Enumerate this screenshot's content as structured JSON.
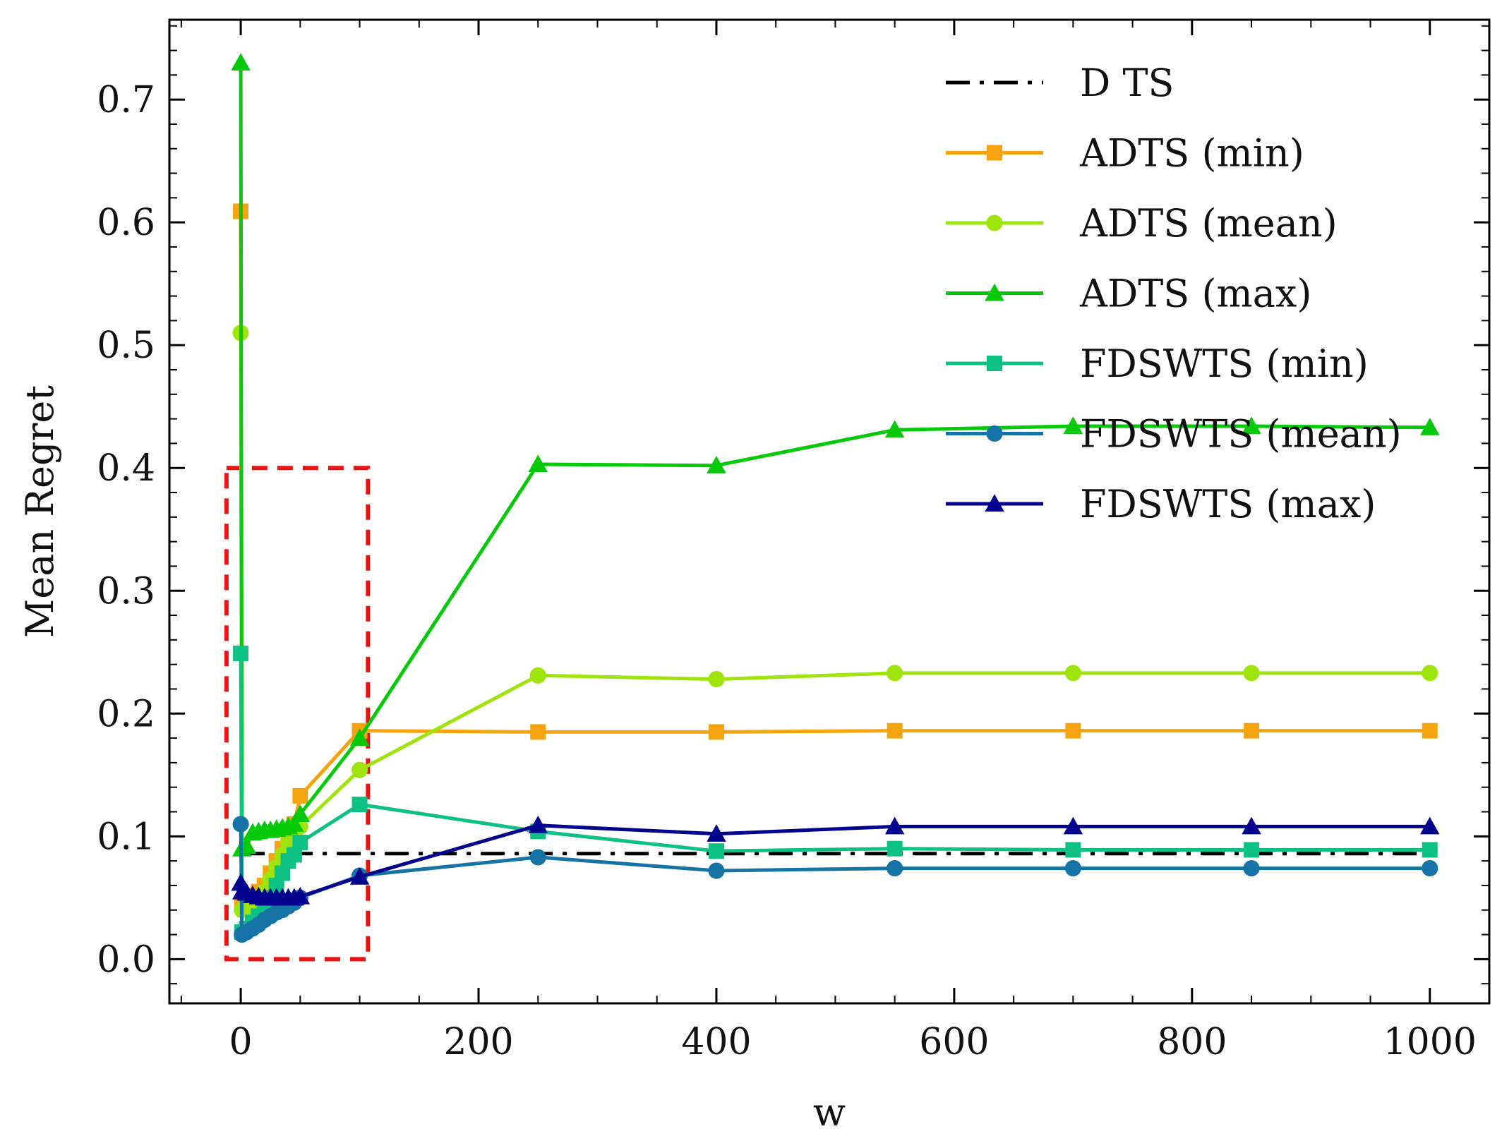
{
  "chart_data": {
    "type": "line",
    "title": "",
    "xlabel": "w",
    "ylabel": "Mean Regret",
    "xlim": [
      -60,
      1050
    ],
    "ylim": [
      -0.036,
      0.765
    ],
    "xticks": [
      0,
      200,
      400,
      600,
      800,
      1000
    ],
    "xtick_labels": [
      "0",
      "200",
      "400",
      "600",
      "800",
      "1000"
    ],
    "yticks": [
      0.0,
      0.1,
      0.2,
      0.3,
      0.4,
      0.5,
      0.6,
      0.7
    ],
    "ytick_labels": [
      "0.0",
      "0.1",
      "0.2",
      "0.3",
      "0.4",
      "0.5",
      "0.6",
      "0.7"
    ],
    "grid": false,
    "legend_position": "top-right",
    "series": [
      {
        "name": "D TS",
        "color": "#000000",
        "dash": "dashdot",
        "marker": "none",
        "x": [
          0,
          1000
        ],
        "y": [
          0.086,
          0.086
        ]
      },
      {
        "name": "ADTS (min)",
        "color": "#f5a30e",
        "dash": "solid",
        "marker": "square",
        "x": [
          0,
          1,
          5,
          10,
          15,
          20,
          25,
          30,
          35,
          40,
          45,
          50,
          100,
          250,
          400,
          550,
          700,
          850,
          1000
        ],
        "y": [
          0.609,
          0.045,
          0.048,
          0.052,
          0.055,
          0.06,
          0.07,
          0.08,
          0.09,
          0.1,
          0.11,
          0.133,
          0.186,
          0.185,
          0.185,
          0.186,
          0.186,
          0.186,
          0.186
        ]
      },
      {
        "name": "ADTS (mean)",
        "color": "#9fe40c",
        "dash": "solid",
        "marker": "circle",
        "x": [
          0,
          1,
          5,
          10,
          15,
          20,
          25,
          30,
          35,
          40,
          45,
          50,
          100,
          250,
          400,
          550,
          700,
          850,
          1000
        ],
        "y": [
          0.51,
          0.04,
          0.04,
          0.045,
          0.05,
          0.055,
          0.065,
          0.075,
          0.085,
          0.095,
          0.1,
          0.108,
          0.154,
          0.231,
          0.228,
          0.233,
          0.233,
          0.233,
          0.233
        ]
      },
      {
        "name": "ADTS (max)",
        "color": "#06c90a",
        "dash": "solid",
        "marker": "triangle",
        "x": [
          0,
          1,
          5,
          10,
          15,
          20,
          25,
          30,
          35,
          40,
          45,
          50,
          100,
          250,
          400,
          550,
          700,
          850,
          1000
        ],
        "y": [
          0.73,
          0.09,
          0.092,
          0.103,
          0.104,
          0.105,
          0.105,
          0.106,
          0.107,
          0.108,
          0.11,
          0.118,
          0.18,
          0.403,
          0.402,
          0.431,
          0.434,
          0.434,
          0.433
        ]
      },
      {
        "name": "FDSWTS (min)",
        "color": "#0cc183",
        "dash": "solid",
        "marker": "square",
        "x": [
          0,
          1,
          5,
          10,
          15,
          20,
          25,
          30,
          35,
          40,
          45,
          50,
          100,
          250,
          400,
          550,
          700,
          850,
          1000
        ],
        "y": [
          0.249,
          0.022,
          0.025,
          0.03,
          0.035,
          0.04,
          0.05,
          0.06,
          0.07,
          0.08,
          0.085,
          0.095,
          0.126,
          0.104,
          0.088,
          0.09,
          0.089,
          0.089,
          0.089
        ]
      },
      {
        "name": "FDSWTS (mean)",
        "color": "#1673a6",
        "dash": "solid",
        "marker": "circle",
        "x": [
          0,
          1,
          5,
          10,
          15,
          20,
          25,
          30,
          35,
          40,
          45,
          50,
          100,
          250,
          400,
          550,
          700,
          850,
          1000
        ],
        "y": [
          0.11,
          0.02,
          0.022,
          0.025,
          0.028,
          0.032,
          0.035,
          0.038,
          0.04,
          0.043,
          0.046,
          0.05,
          0.068,
          0.083,
          0.072,
          0.074,
          0.074,
          0.074,
          0.074
        ]
      },
      {
        "name": "FDSWTS (max)",
        "color": "#02028f",
        "dash": "solid",
        "marker": "triangle",
        "x": [
          0,
          1,
          5,
          10,
          15,
          20,
          25,
          30,
          35,
          40,
          45,
          50,
          100,
          250,
          400,
          550,
          700,
          850,
          1000
        ],
        "y": [
          0.062,
          0.055,
          0.054,
          0.052,
          0.051,
          0.05,
          0.05,
          0.05,
          0.05,
          0.05,
          0.05,
          0.051,
          0.067,
          0.109,
          0.102,
          0.108,
          0.108,
          0.108,
          0.108
        ]
      }
    ],
    "annotations": [
      {
        "type": "dashed-rectangle",
        "color": "#ee1111",
        "x": [
          -12,
          107
        ],
        "y": [
          0.0,
          0.4
        ]
      }
    ]
  }
}
